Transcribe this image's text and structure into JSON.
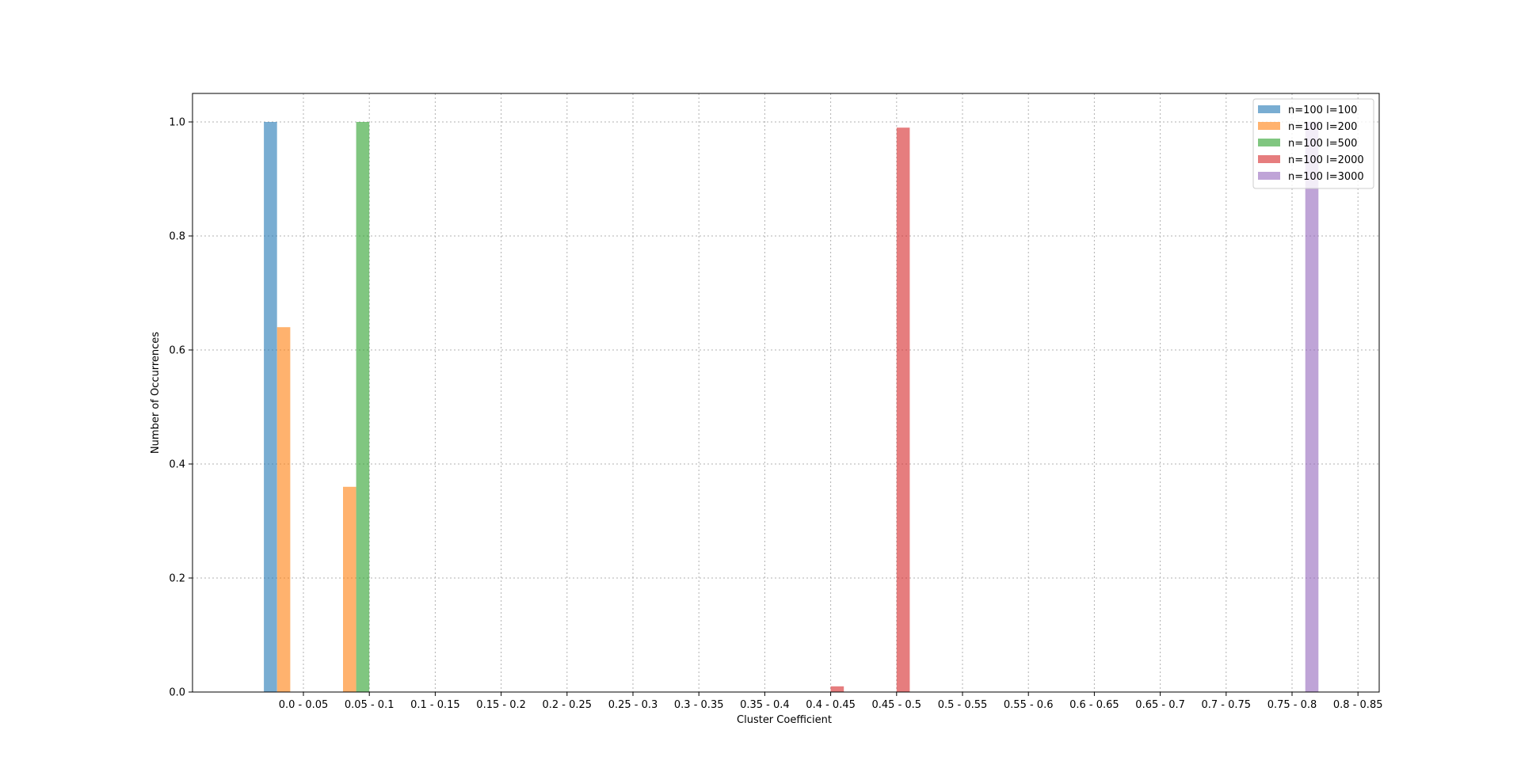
{
  "chart_data": {
    "type": "bar",
    "title": "",
    "xlabel": "Cluster Coefficient",
    "ylabel": "Number of Occurrences",
    "ylim": [
      0,
      1.05
    ],
    "yticks": [
      "0.0",
      "0.2",
      "0.4",
      "0.6",
      "0.8",
      "1.0"
    ],
    "grid": true,
    "legend_position": "top-right",
    "categories": [
      "0.0 - 0.05",
      "0.05 - 0.1",
      "0.1 - 0.15",
      "0.15 - 0.2",
      "0.2 - 0.25",
      "0.25 - 0.3",
      "0.3 - 0.35",
      "0.35 - 0.4",
      "0.4 - 0.45",
      "0.45 - 0.5",
      "0.5 - 0.55",
      "0.55 - 0.6",
      "0.6 - 0.65",
      "0.65 - 0.7",
      "0.7 - 0.75",
      "0.75 - 0.8",
      "0.8 - 0.85"
    ],
    "series": [
      {
        "name": "n=100 l=100",
        "color": "#1f77b4",
        "values": [
          1.0,
          0,
          0,
          0,
          0,
          0,
          0,
          0,
          0,
          0,
          0,
          0,
          0,
          0,
          0,
          0,
          0
        ]
      },
      {
        "name": "n=100 l=200",
        "color": "#ff7f0e",
        "values": [
          0.64,
          0.36,
          0,
          0,
          0,
          0,
          0,
          0,
          0,
          0,
          0,
          0,
          0,
          0,
          0,
          0,
          0
        ]
      },
      {
        "name": "n=100 l=500",
        "color": "#2ca02c",
        "values": [
          0,
          1.0,
          0,
          0,
          0,
          0,
          0,
          0,
          0,
          0,
          0,
          0,
          0,
          0,
          0,
          0,
          0
        ]
      },
      {
        "name": "n=100 l=2000",
        "color": "#d62728",
        "values": [
          0,
          0,
          0,
          0,
          0,
          0,
          0,
          0,
          0.01,
          0.99,
          0,
          0,
          0,
          0,
          0,
          0,
          0
        ]
      },
      {
        "name": "n=100 l=3000",
        "color": "#9467bd",
        "values": [
          0,
          0,
          0,
          0,
          0,
          0,
          0,
          0,
          0,
          0,
          0,
          0,
          0,
          0,
          0,
          1.0,
          0
        ]
      }
    ]
  }
}
